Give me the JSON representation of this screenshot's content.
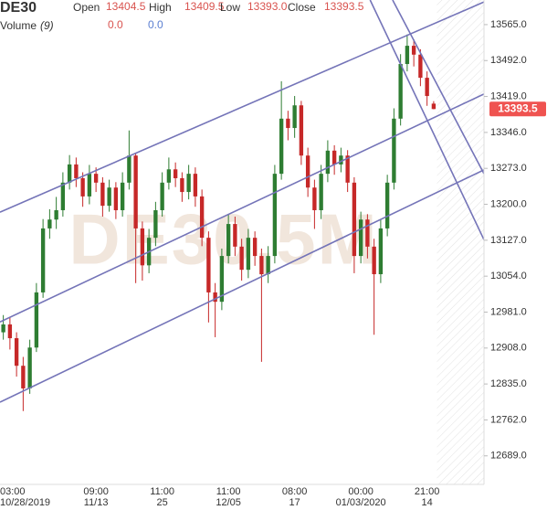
{
  "header": {
    "symbol": "DE30",
    "fields": [
      {
        "label": "Open",
        "value": "13404.5"
      },
      {
        "label": "High",
        "value": "13409.5"
      },
      {
        "label": "Low",
        "value": "13393.0"
      },
      {
        "label": "Close",
        "value": "13393.5"
      }
    ],
    "volume_label": "Volume",
    "volume_param": "(9)",
    "volume_values": [
      "0.0",
      "0.0"
    ]
  },
  "chart_data": {
    "type": "candlestick",
    "watermark": "DE30,5M",
    "up_color": "#2e7d32",
    "down_color": "#c62828",
    "line_color": "#7474b8",
    "last_price_color": "#ef5350",
    "candles": [
      [
        12940,
        12975,
        12925,
        12956
      ],
      [
        12956,
        12970,
        12905,
        12928
      ],
      [
        12928,
        12940,
        12850,
        12872
      ],
      [
        12872,
        12890,
        12780,
        12826
      ],
      [
        12826,
        12925,
        12815,
        12909
      ],
      [
        12909,
        13040,
        12900,
        13021
      ],
      [
        13021,
        13170,
        13010,
        13151
      ],
      [
        13151,
        13190,
        13130,
        13169
      ],
      [
        13169,
        13215,
        13150,
        13188
      ],
      [
        13188,
        13265,
        13175,
        13244
      ],
      [
        13244,
        13300,
        13230,
        13281
      ],
      [
        13281,
        13295,
        13235,
        13253
      ],
      [
        13253,
        13265,
        13195,
        13216
      ],
      [
        13216,
        13280,
        13200,
        13262
      ],
      [
        13262,
        13275,
        13225,
        13244
      ],
      [
        13244,
        13255,
        13175,
        13197
      ],
      [
        13197,
        13250,
        13185,
        13234
      ],
      [
        13234,
        13245,
        13170,
        13188
      ],
      [
        13188,
        13265,
        13175,
        13244
      ],
      [
        13244,
        13350,
        13230,
        13299
      ],
      [
        13299,
        13305,
        13040,
        13151
      ],
      [
        13151,
        13165,
        13045,
        13076
      ],
      [
        13076,
        13150,
        13060,
        13132
      ],
      [
        13132,
        13205,
        13115,
        13188
      ],
      [
        13188,
        13265,
        13175,
        13244
      ],
      [
        13244,
        13295,
        13230,
        13271
      ],
      [
        13271,
        13285,
        13235,
        13253
      ],
      [
        13253,
        13265,
        13205,
        13225
      ],
      [
        13225,
        13280,
        13210,
        13262
      ],
      [
        13262,
        13275,
        13195,
        13216
      ],
      [
        13216,
        13230,
        13115,
        13132
      ],
      [
        13132,
        13145,
        12960,
        13021
      ],
      [
        13021,
        13040,
        12930,
        13002
      ],
      [
        13002,
        13110,
        12985,
        13095
      ],
      [
        13095,
        13180,
        13080,
        13160
      ],
      [
        13160,
        13175,
        13095,
        13114
      ],
      [
        13114,
        13130,
        13045,
        13067
      ],
      [
        13067,
        13150,
        13050,
        13132
      ],
      [
        13132,
        13145,
        13075,
        13095
      ],
      [
        13095,
        13110,
        12880,
        13058
      ],
      [
        13058,
        13115,
        13040,
        13095
      ],
      [
        13095,
        13280,
        13080,
        13262
      ],
      [
        13262,
        13450,
        13250,
        13374
      ],
      [
        13374,
        13390,
        13330,
        13355
      ],
      [
        13355,
        13420,
        13335,
        13401
      ],
      [
        13401,
        13410,
        13280,
        13299
      ],
      [
        13299,
        13315,
        13215,
        13234
      ],
      [
        13234,
        13250,
        13150,
        13188
      ],
      [
        13188,
        13280,
        13170,
        13262
      ],
      [
        13262,
        13330,
        13245,
        13309
      ],
      [
        13309,
        13320,
        13260,
        13281
      ],
      [
        13281,
        13315,
        13265,
        13299
      ],
      [
        13299,
        13310,
        13225,
        13244
      ],
      [
        13244,
        13255,
        13060,
        13095
      ],
      [
        13095,
        13185,
        13080,
        13169
      ],
      [
        13169,
        13180,
        13090,
        13114
      ],
      [
        13114,
        13130,
        12935,
        13058
      ],
      [
        13058,
        13170,
        13040,
        13151
      ],
      [
        13151,
        13260,
        13135,
        13244
      ],
      [
        13244,
        13395,
        13230,
        13374
      ],
      [
        13374,
        13505,
        13360,
        13485
      ],
      [
        13485,
        13545,
        13470,
        13522
      ],
      [
        13522,
        13535,
        13480,
        13504
      ],
      [
        13504,
        13515,
        13440,
        13457
      ],
      [
        13457,
        13470,
        13400,
        13420
      ],
      [
        13404.5,
        13409.5,
        13393,
        13393.5
      ]
    ],
    "categories": [
      null,
      "03:00",
      null,
      null,
      null,
      null,
      null,
      null,
      null,
      null,
      null,
      null,
      null,
      null,
      "09:00",
      null,
      null,
      null,
      null,
      null,
      null,
      null,
      null,
      null,
      "11:00",
      null,
      null,
      null,
      null,
      null,
      null,
      null,
      null,
      null,
      "11:00",
      null,
      null,
      null,
      null,
      null,
      null,
      null,
      null,
      null,
      "08:00",
      null,
      null,
      null,
      null,
      null,
      null,
      null,
      null,
      null,
      "00:00",
      null,
      null,
      null,
      null,
      null,
      null,
      null,
      null,
      null,
      "21:00",
      null
    ],
    "category_dates": [
      null,
      "10/28/2019",
      null,
      null,
      null,
      null,
      null,
      null,
      null,
      null,
      null,
      null,
      null,
      null,
      "11/13",
      null,
      null,
      null,
      null,
      null,
      null,
      null,
      null,
      null,
      "25",
      null,
      null,
      null,
      null,
      null,
      null,
      null,
      null,
      null,
      "12/05",
      null,
      null,
      null,
      null,
      null,
      null,
      null,
      null,
      null,
      "17",
      null,
      null,
      null,
      null,
      null,
      null,
      null,
      null,
      null,
      "01/03/2020",
      null,
      null,
      null,
      null,
      null,
      null,
      null,
      null,
      null,
      "14",
      null
    ],
    "xlim": [
      -0.5,
      72.6
    ],
    "ylim": [
      12631,
      13615
    ],
    "yticks": [
      {
        "value": 13565,
        "label": "13565.0"
      },
      {
        "value": 13492,
        "label": "13492.0"
      },
      {
        "value": 13419,
        "label": "13419.0"
      },
      {
        "value": 13346,
        "label": "13346.0"
      },
      {
        "value": 13273,
        "label": "13273.0"
      },
      {
        "value": 13200,
        "label": "13200.0"
      },
      {
        "value": 13127,
        "label": "13127.0"
      },
      {
        "value": 13054,
        "label": "13054.0"
      },
      {
        "value": 12981,
        "label": "12981.0"
      },
      {
        "value": 12908,
        "label": "12908.0"
      },
      {
        "value": 12835,
        "label": "12835.0"
      },
      {
        "value": 12762,
        "label": "12762.0"
      },
      {
        "value": 12689,
        "label": "12689.0"
      }
    ],
    "last_price": 13393.5,
    "trend_lines": [
      {
        "x": [
          -0.5,
          72.6
        ],
        "y": [
          13184,
          13611
        ]
      },
      {
        "x": [
          -0.5,
          72.6
        ],
        "y": [
          12961,
          13424
        ]
      },
      {
        "x": [
          -0.5,
          72.6
        ],
        "y": [
          12798,
          13270
        ]
      },
      {
        "x": [
          55.4,
          72.6
        ],
        "y": [
          13615,
          13128
        ]
      },
      {
        "x": [
          58.8,
          72.6
        ],
        "y": [
          13615,
          13262
        ]
      }
    ]
  }
}
